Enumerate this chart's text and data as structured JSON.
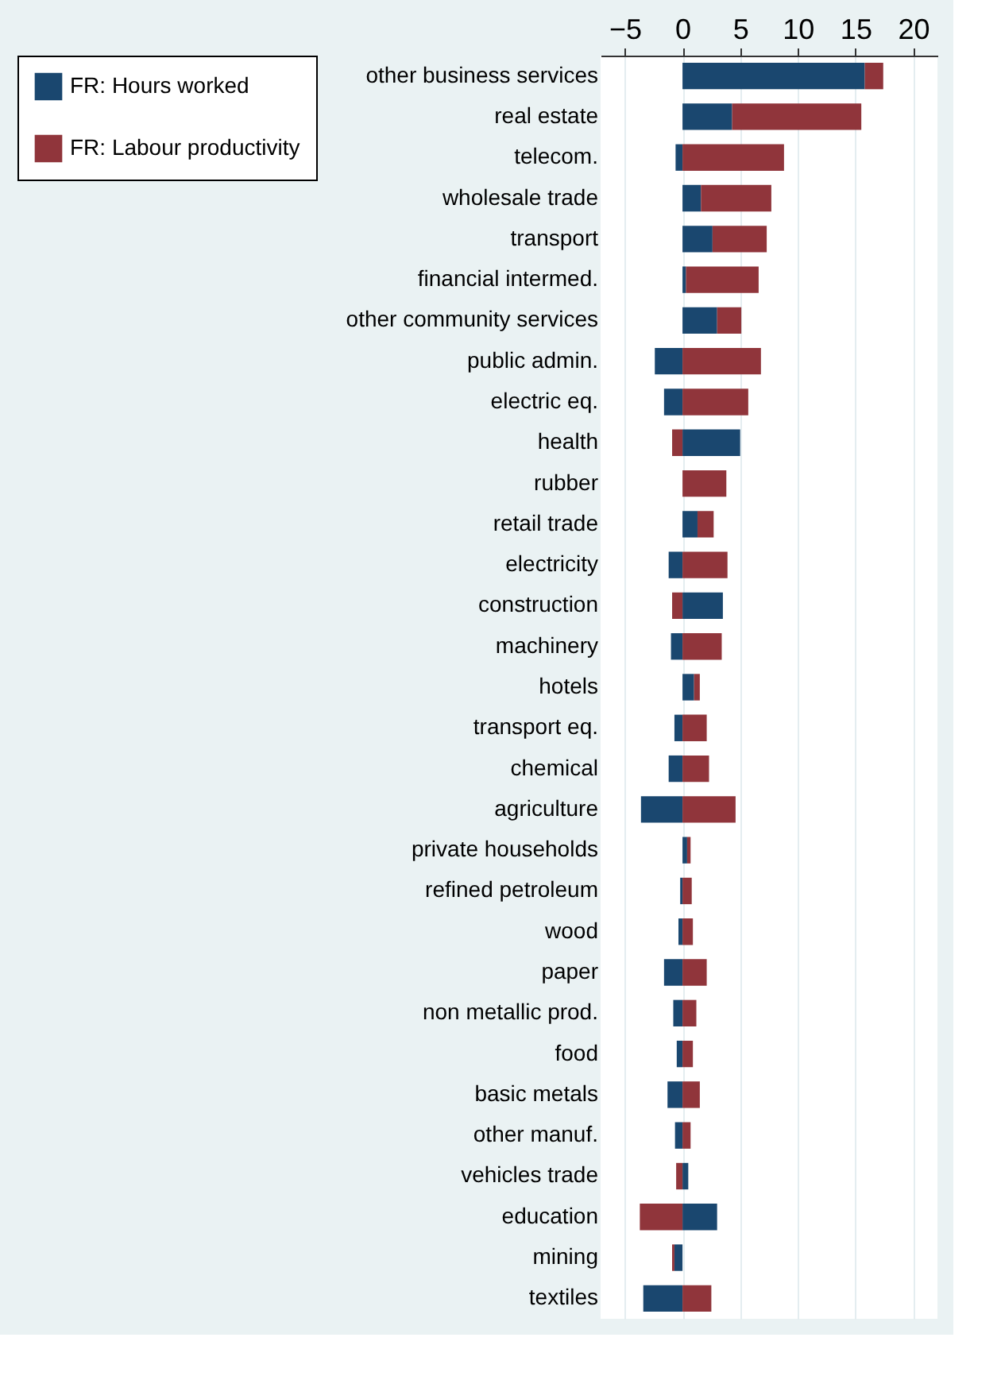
{
  "chart_data": {
    "type": "bar",
    "orientation": "horizontal",
    "stacked": true,
    "categories": [
      "other business services",
      "real estate",
      "telecom.",
      "wholesale trade",
      "transport",
      "financial intermed.",
      "other community services",
      "public admin.",
      "electric eq.",
      "health",
      "rubber",
      "retail trade",
      "electricity",
      "construction",
      "machinery",
      "hotels",
      "transport eq.",
      "chemical",
      "agriculture",
      "private households",
      "refined petroleum",
      "wood",
      "paper",
      "non metallic prod.",
      "food",
      "basic metals",
      "other manuf.",
      "vehicles trade",
      "education",
      "mining",
      "textiles"
    ],
    "series": [
      {
        "name": "FR: Hours worked",
        "color": "#1a476f",
        "values": [
          15.8,
          4.3,
          -0.6,
          1.6,
          2.6,
          0.3,
          3.0,
          -2.4,
          -1.6,
          5.0,
          0,
          1.3,
          -1.2,
          3.5,
          -1.0,
          1.0,
          -0.7,
          -1.2,
          -3.6,
          0.4,
          -0.2,
          -0.35,
          -1.6,
          -0.8,
          -0.5,
          -1.3,
          -0.65,
          0.5,
          3.0,
          -0.7,
          -3.4
        ]
      },
      {
        "name": "FR: Labour productivity",
        "color": "#90353b",
        "values": [
          1.6,
          11.2,
          8.8,
          6.1,
          4.7,
          6.3,
          2.1,
          6.8,
          5.7,
          -0.9,
          3.8,
          1.4,
          3.9,
          -0.9,
          3.4,
          0.5,
          2.1,
          2.3,
          4.6,
          0.3,
          0.8,
          0.9,
          2.1,
          1.2,
          0.9,
          1.5,
          0.7,
          -0.55,
          -3.7,
          -0.2,
          2.5
        ]
      }
    ],
    "xlim": [
      -7.1,
      22.1
    ],
    "xticks": [
      -5,
      0,
      5,
      10,
      15,
      20
    ],
    "grid": "x",
    "legend": "left"
  }
}
